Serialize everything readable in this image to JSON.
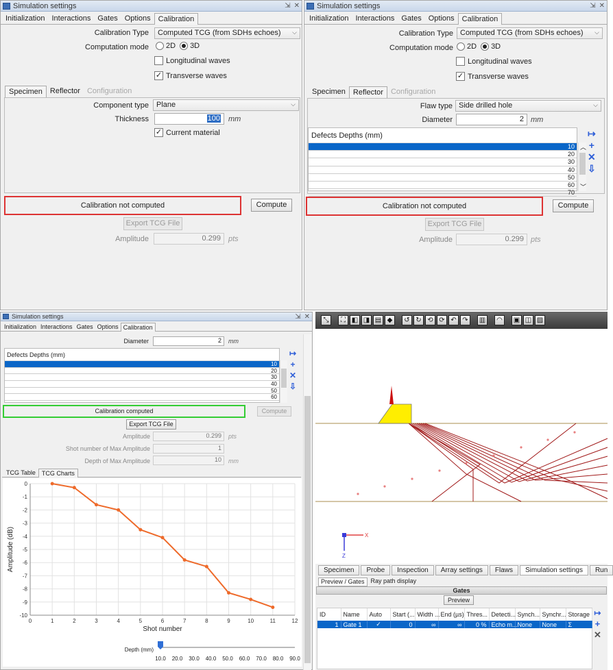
{
  "window_title": "Simulation settings",
  "main_tabs": [
    "Initialization",
    "Interactions",
    "Gates",
    "Options",
    "Calibration"
  ],
  "active_main_tab": "Calibration",
  "calibration": {
    "type_label": "Calibration Type",
    "type_value": "Computed TCG (from SDHs echoes)",
    "mode_label": "Computation mode",
    "mode_2d": "2D",
    "mode_3d": "3D",
    "mode_selected": "3D",
    "longitudinal_label": "Longitudinal waves",
    "longitudinal_checked": false,
    "transverse_label": "Transverse waves",
    "transverse_checked": true
  },
  "sub_tabs": [
    "Specimen",
    "Reflector",
    "Configuration"
  ],
  "specimen": {
    "component_type_label": "Component type",
    "component_type_value": "Plane",
    "thickness_label": "Thickness",
    "thickness_value": "100",
    "thickness_unit": "mm",
    "current_material_label": "Current material",
    "current_material_checked": true
  },
  "reflector": {
    "flaw_type_label": "Flaw type",
    "flaw_type_value": "Side drilled hole",
    "diameter_label": "Diameter",
    "diameter_value": "2",
    "diameter_unit": "mm",
    "depths_header": "Defects Depths (mm)",
    "depths": [
      "10",
      "20",
      "30",
      "40",
      "50",
      "60",
      "70"
    ]
  },
  "status": {
    "not_computed": "Calibration not computed",
    "computed": "Calibration computed"
  },
  "buttons": {
    "compute": "Compute",
    "export_tcg": "Export TCG File",
    "preview": "Preview"
  },
  "results": {
    "amplitude_label": "Amplitude",
    "amplitude_value": "0.299",
    "amplitude_unit": "pts",
    "shot_label": "Shot number of Max Amplitude",
    "shot_value": "1",
    "depth_label": "Depth of Max Amplitude",
    "depth_value": "10",
    "depth_unit": "mm"
  },
  "tcg_tabs": [
    "TCG Table",
    "TCG Charts"
  ],
  "depth_slider": {
    "label": "Depth (mm)",
    "ticks": [
      "10.0",
      "20.0",
      "30.0",
      "40.0",
      "50.0",
      "60.0",
      "70.0",
      "80.0",
      "90.0"
    ],
    "value": 10.0
  },
  "chart_data": {
    "type": "line",
    "xlabel": "Shot number",
    "ylabel": "Amplitude (dB)",
    "xlim": [
      0,
      12
    ],
    "ylim": [
      -10,
      0
    ],
    "xticks": [
      0,
      1,
      2,
      3,
      4,
      5,
      6,
      7,
      8,
      9,
      10,
      11,
      12
    ],
    "yticks": [
      0,
      -1,
      -2,
      -3,
      -4,
      -5,
      -6,
      -7,
      -8,
      -9,
      -10
    ],
    "grid": true,
    "color": "#ee6a2a",
    "x": [
      1,
      2,
      3,
      4,
      5,
      6,
      7,
      8,
      9,
      10,
      11
    ],
    "y": [
      0,
      -0.3,
      -1.6,
      -2.0,
      -3.5,
      -4.1,
      -5.8,
      -6.3,
      -8.3,
      -8.8,
      -9.4
    ]
  },
  "scene": {
    "axis_x": "X",
    "axis_z": "Z",
    "bottom_tabs": [
      "Specimen",
      "Probe",
      "Inspection",
      "Array settings",
      "Flaws",
      "Simulation settings",
      "Run"
    ],
    "bottom_active": "Simulation settings",
    "sub_tabs": [
      "Preview / Gates",
      "Ray path display"
    ],
    "gates_title": "Gates",
    "gates_columns": [
      "ID",
      "Name",
      "Auto",
      "Start (...",
      "Width ...",
      "End (µs)",
      "Thres...",
      "Detecti...",
      "Synch...",
      "Synchr...",
      "Storage"
    ],
    "gates_row": [
      "1",
      "Gate 1",
      "✓",
      "0",
      "∞",
      "∞",
      "0 %",
      "Echo m...",
      "None",
      "None",
      "Σ"
    ]
  },
  "colors": {
    "status_bad": "#dd3333",
    "status_ok": "#33cc33",
    "selection": "#0a66c8",
    "ray": "#a01818",
    "probe": "#ffee00"
  }
}
